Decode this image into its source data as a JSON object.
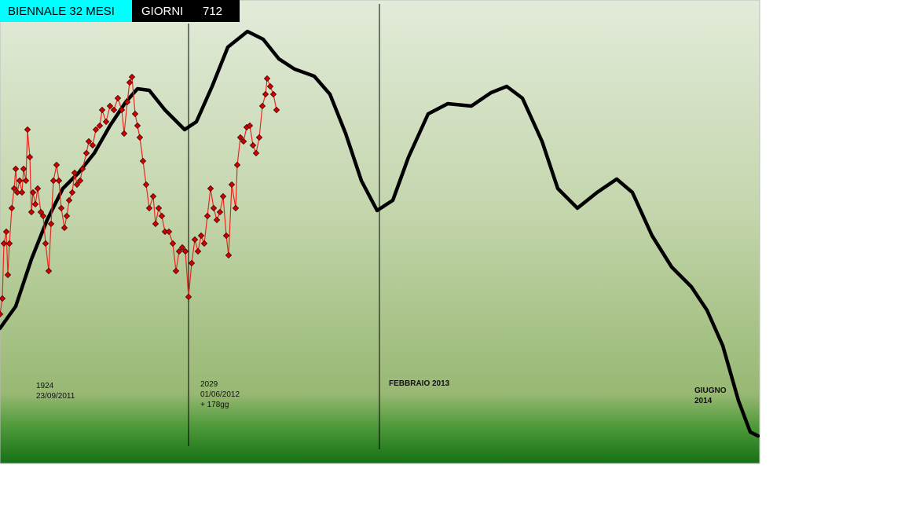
{
  "chart_data": {
    "type": "line",
    "header": {
      "title": "BIENNALE 32 MESI",
      "label": "GIORNI",
      "value": 712
    },
    "xlim": [
      0,
      967
    ],
    "ylim": [
      0,
      590
    ],
    "series": [
      {
        "color": "#000000",
        "x": [
          0,
          20,
          40,
          60,
          80,
          100,
          120,
          140,
          160,
          175,
          190,
          210,
          235,
          250,
          270,
          290,
          315,
          335,
          355,
          375,
          400,
          420,
          440,
          460,
          480,
          500,
          520,
          545,
          570,
          600,
          625,
          645,
          665,
          690,
          710,
          735,
          760,
          785,
          805,
          830,
          855,
          880,
          900,
          920,
          940,
          955,
          965
        ],
        "values": [
          172,
          200,
          260,
          310,
          350,
          370,
          395,
          430,
          460,
          477,
          475,
          450,
          425,
          435,
          480,
          530,
          550,
          540,
          515,
          502,
          493,
          470,
          420,
          360,
          322,
          335,
          390,
          445,
          458,
          455,
          472,
          480,
          465,
          410,
          350,
          325,
          345,
          362,
          345,
          290,
          250,
          225,
          195,
          150,
          80,
          40,
          35
        ]
      },
      {
        "color": "#e8281e",
        "marker": "diamond",
        "x": [
          0,
          3,
          5,
          8,
          10,
          12,
          15,
          18,
          20,
          22,
          25,
          28,
          30,
          33,
          35,
          38,
          40,
          42,
          45,
          48,
          52,
          55,
          58,
          62,
          65,
          68,
          72,
          75,
          78,
          82,
          85,
          88,
          92,
          95,
          98,
          102,
          105,
          110,
          113,
          118,
          122,
          127,
          130,
          135,
          140,
          145,
          150,
          155,
          158,
          162,
          165,
          168,
          172,
          175,
          178,
          182,
          186,
          190,
          195,
          198,
          202,
          206,
          210,
          215,
          220,
          224,
          228,
          232,
          236,
          240,
          244,
          248,
          252,
          256,
          260,
          264,
          268,
          272,
          276,
          280,
          284,
          288,
          291,
          295,
          300,
          302,
          306,
          310,
          314,
          318,
          322,
          326,
          330,
          334,
          338,
          340,
          344,
          348,
          352
        ],
        "values": [
          190,
          210,
          280,
          295,
          240,
          280,
          325,
          350,
          375,
          345,
          360,
          345,
          375,
          360,
          425,
          390,
          320,
          345,
          330,
          350,
          320,
          315,
          280,
          245,
          305,
          360,
          380,
          360,
          325,
          300,
          315,
          335,
          345,
          370,
          355,
          360,
          375,
          395,
          410,
          405,
          425,
          430,
          450,
          435,
          455,
          450,
          465,
          450,
          420,
          460,
          485,
          492,
          445,
          430,
          415,
          385,
          355,
          325,
          340,
          305,
          325,
          315,
          295,
          295,
          280,
          245,
          270,
          275,
          270,
          212,
          255,
          285,
          270,
          290,
          280,
          315,
          350,
          325,
          310,
          320,
          340,
          290,
          265,
          355,
          325,
          380,
          415,
          410,
          428,
          430,
          405,
          395,
          415,
          455,
          470,
          490,
          480,
          470,
          450
        ]
      }
    ],
    "annotations": [
      {
        "lines": [
          "1924",
          "23/09/2011"
        ]
      },
      {
        "lines": [
          "2029",
          "01/06/2012",
          "+ 178gg"
        ]
      },
      {
        "lines": [
          "FEBBRAIO 2013"
        ]
      },
      {
        "lines": [
          "GIUGNO",
          "2014"
        ]
      }
    ]
  }
}
